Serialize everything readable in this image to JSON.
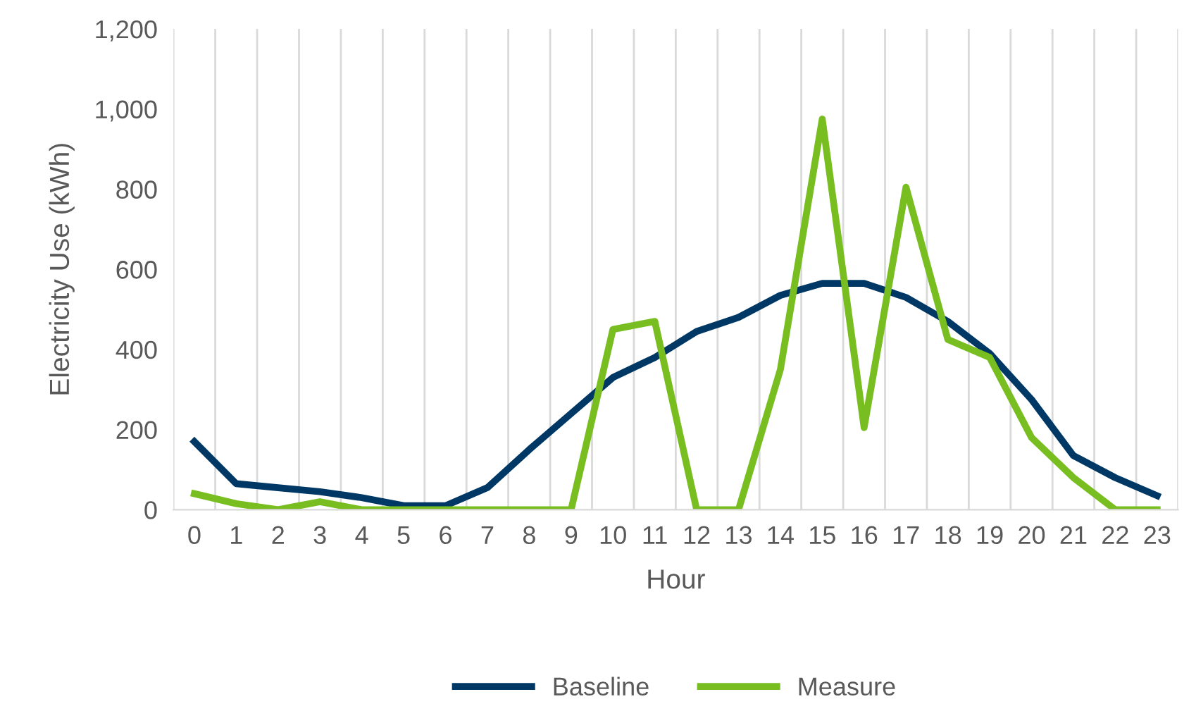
{
  "chart_data": {
    "type": "line",
    "xlabel": "Hour",
    "ylabel": "Electricity Use (kWh)",
    "categories": [
      "0",
      "1",
      "2",
      "3",
      "4",
      "5",
      "6",
      "7",
      "8",
      "9",
      "10",
      "11",
      "12",
      "13",
      "14",
      "15",
      "16",
      "17",
      "18",
      "19",
      "20",
      "21",
      "22",
      "23"
    ],
    "series": [
      {
        "name": "Baseline",
        "color": "#003865",
        "values": [
          170,
          65,
          55,
          45,
          30,
          10,
          10,
          55,
          150,
          240,
          330,
          380,
          445,
          480,
          535,
          565,
          565,
          530,
          470,
          390,
          275,
          135,
          80,
          35
        ]
      },
      {
        "name": "Measure",
        "color": "#78be20",
        "values": [
          40,
          15,
          0,
          20,
          0,
          0,
          0,
          0,
          0,
          0,
          450,
          470,
          0,
          0,
          350,
          975,
          205,
          805,
          425,
          380,
          180,
          80,
          0,
          0
        ]
      }
    ],
    "ylim": [
      0,
      1200
    ],
    "yticks": [
      0,
      {
        "value": 200,
        "label": "200"
      },
      {
        "value": 400,
        "label": "400"
      },
      {
        "value": 600,
        "label": "600"
      },
      {
        "value": 800,
        "label": "800"
      },
      {
        "value": 1000,
        "label": "1,000"
      },
      {
        "value": 1200,
        "label": "1,200"
      }
    ],
    "grid": "x",
    "legend": "bottom",
    "marker": "none",
    "line_style": "solid"
  }
}
